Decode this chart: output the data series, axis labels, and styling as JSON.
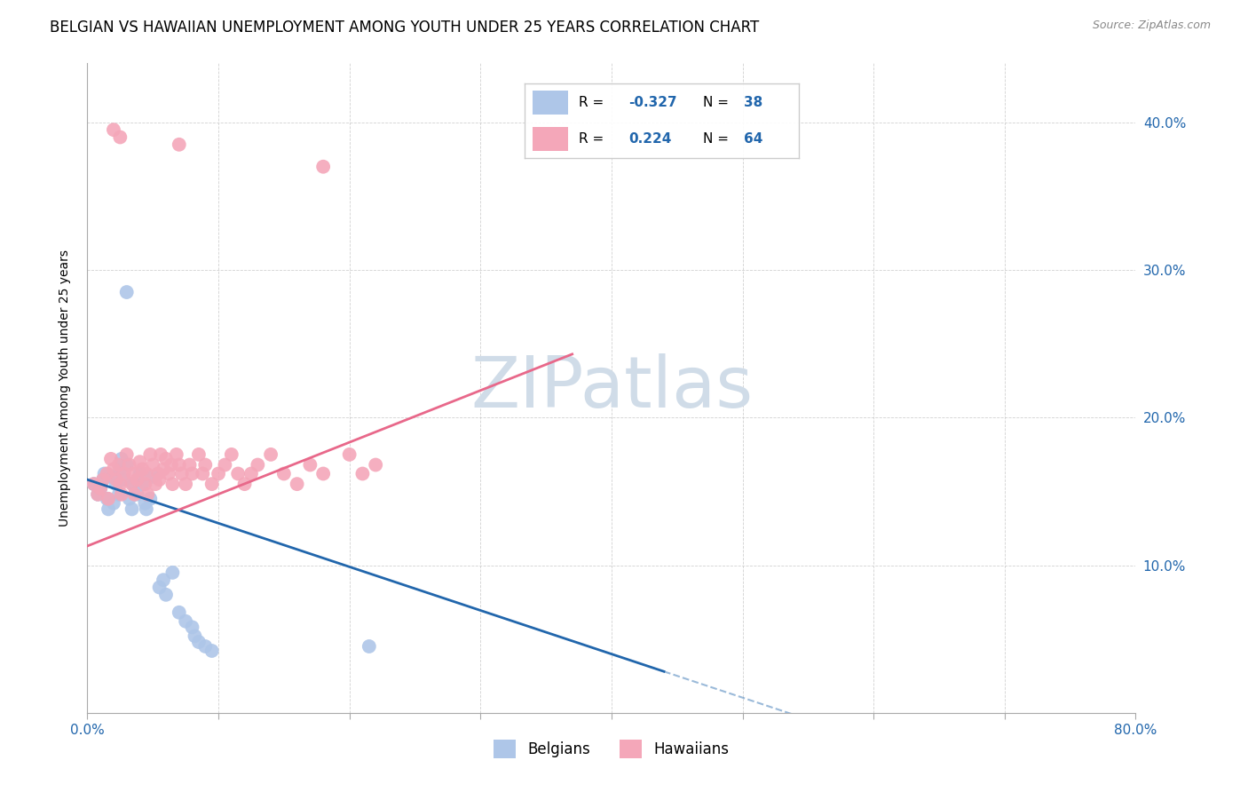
{
  "title": "BELGIAN VS HAWAIIAN UNEMPLOYMENT AMONG YOUTH UNDER 25 YEARS CORRELATION CHART",
  "source": "Source: ZipAtlas.com",
  "ylabel": "Unemployment Among Youth under 25 years",
  "xlim": [
    0.0,
    0.8
  ],
  "ylim": [
    0.0,
    0.44
  ],
  "xticks": [
    0.0,
    0.1,
    0.2,
    0.3,
    0.4,
    0.5,
    0.6,
    0.7,
    0.8
  ],
  "xticklabels": [
    "0.0%",
    "",
    "",
    "",
    "",
    "",
    "",
    "",
    "80.0%"
  ],
  "yticks": [
    0.0,
    0.1,
    0.2,
    0.3,
    0.4
  ],
  "yticklabels": [
    "",
    "10.0%",
    "20.0%",
    "30.0%",
    "40.0%"
  ],
  "belgian_R": -0.327,
  "belgian_N": 38,
  "hawaiian_R": 0.224,
  "hawaiian_N": 64,
  "belgian_color": "#aec6e8",
  "hawaiian_color": "#f4a7b9",
  "belgian_line_color": "#2166ac",
  "hawaiian_line_color": "#e8688a",
  "tick_color": "#2166ac",
  "watermark_color": "#d0dce8",
  "title_fontsize": 12,
  "axis_label_fontsize": 10,
  "tick_fontsize": 11,
  "legend_fontsize": 12,
  "belgians_data": [
    [
      0.005,
      0.155
    ],
    [
      0.008,
      0.148
    ],
    [
      0.01,
      0.152
    ],
    [
      0.012,
      0.158
    ],
    [
      0.013,
      0.162
    ],
    [
      0.015,
      0.145
    ],
    [
      0.016,
      0.138
    ],
    [
      0.018,
      0.16
    ],
    [
      0.02,
      0.142
    ],
    [
      0.022,
      0.155
    ],
    [
      0.024,
      0.148
    ],
    [
      0.025,
      0.165
    ],
    [
      0.026,
      0.172
    ],
    [
      0.028,
      0.158
    ],
    [
      0.03,
      0.168
    ],
    [
      0.032,
      0.145
    ],
    [
      0.034,
      0.138
    ],
    [
      0.035,
      0.155
    ],
    [
      0.038,
      0.148
    ],
    [
      0.04,
      0.162
    ],
    [
      0.042,
      0.155
    ],
    [
      0.044,
      0.142
    ],
    [
      0.045,
      0.138
    ],
    [
      0.048,
      0.145
    ],
    [
      0.05,
      0.16
    ],
    [
      0.055,
      0.085
    ],
    [
      0.058,
      0.09
    ],
    [
      0.06,
      0.08
    ],
    [
      0.065,
      0.095
    ],
    [
      0.07,
      0.068
    ],
    [
      0.075,
      0.062
    ],
    [
      0.08,
      0.058
    ],
    [
      0.082,
      0.052
    ],
    [
      0.085,
      0.048
    ],
    [
      0.09,
      0.045
    ],
    [
      0.095,
      0.042
    ],
    [
      0.03,
      0.285
    ],
    [
      0.215,
      0.045
    ]
  ],
  "hawaiians_data": [
    [
      0.005,
      0.155
    ],
    [
      0.008,
      0.148
    ],
    [
      0.01,
      0.152
    ],
    [
      0.012,
      0.158
    ],
    [
      0.015,
      0.162
    ],
    [
      0.016,
      0.145
    ],
    [
      0.018,
      0.172
    ],
    [
      0.02,
      0.165
    ],
    [
      0.022,
      0.158
    ],
    [
      0.024,
      0.168
    ],
    [
      0.025,
      0.155
    ],
    [
      0.026,
      0.148
    ],
    [
      0.028,
      0.162
    ],
    [
      0.03,
      0.175
    ],
    [
      0.032,
      0.168
    ],
    [
      0.034,
      0.155
    ],
    [
      0.035,
      0.162
    ],
    [
      0.036,
      0.148
    ],
    [
      0.038,
      0.158
    ],
    [
      0.04,
      0.17
    ],
    [
      0.042,
      0.165
    ],
    [
      0.044,
      0.155
    ],
    [
      0.045,
      0.162
    ],
    [
      0.046,
      0.148
    ],
    [
      0.048,
      0.175
    ],
    [
      0.05,
      0.168
    ],
    [
      0.052,
      0.155
    ],
    [
      0.054,
      0.162
    ],
    [
      0.055,
      0.158
    ],
    [
      0.056,
      0.175
    ],
    [
      0.058,
      0.165
    ],
    [
      0.06,
      0.172
    ],
    [
      0.062,
      0.162
    ],
    [
      0.064,
      0.168
    ],
    [
      0.065,
      0.155
    ],
    [
      0.068,
      0.175
    ],
    [
      0.07,
      0.168
    ],
    [
      0.072,
      0.162
    ],
    [
      0.075,
      0.155
    ],
    [
      0.078,
      0.168
    ],
    [
      0.08,
      0.162
    ],
    [
      0.085,
      0.175
    ],
    [
      0.088,
      0.162
    ],
    [
      0.09,
      0.168
    ],
    [
      0.095,
      0.155
    ],
    [
      0.1,
      0.162
    ],
    [
      0.105,
      0.168
    ],
    [
      0.11,
      0.175
    ],
    [
      0.115,
      0.162
    ],
    [
      0.12,
      0.155
    ],
    [
      0.125,
      0.162
    ],
    [
      0.13,
      0.168
    ],
    [
      0.14,
      0.175
    ],
    [
      0.15,
      0.162
    ],
    [
      0.16,
      0.155
    ],
    [
      0.17,
      0.168
    ],
    [
      0.18,
      0.162
    ],
    [
      0.2,
      0.175
    ],
    [
      0.21,
      0.162
    ],
    [
      0.22,
      0.168
    ],
    [
      0.07,
      0.385
    ],
    [
      0.18,
      0.37
    ],
    [
      0.02,
      0.395
    ],
    [
      0.025,
      0.39
    ]
  ]
}
